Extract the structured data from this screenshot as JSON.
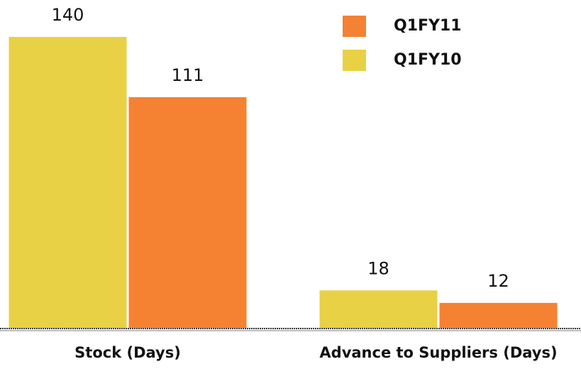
{
  "chart_data": {
    "type": "bar",
    "categories": [
      "Stock (Days)",
      "Advance to Suppliers (Days)"
    ],
    "series": [
      {
        "name": "Q1FY10",
        "color": "#e8d144",
        "values": [
          140,
          18
        ]
      },
      {
        "name": "Q1FY11",
        "color": "#f58232",
        "values": [
          111,
          12
        ]
      }
    ],
    "ylim": [
      0,
      140
    ]
  }
}
